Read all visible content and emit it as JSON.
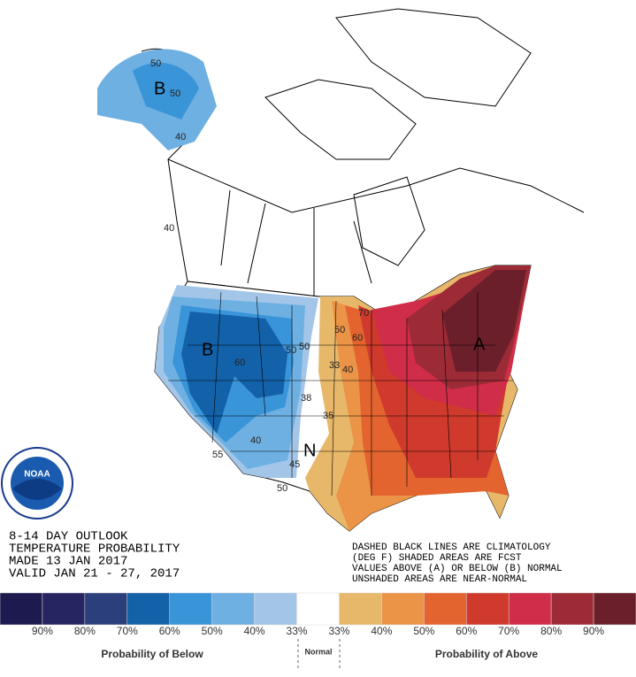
{
  "map": {
    "letters": [
      "B",
      "B",
      "A",
      "N"
    ],
    "contour_labels": [
      "50",
      "50",
      "40",
      "40",
      "60",
      "50",
      "60",
      "50",
      "70",
      "40",
      "33",
      "38",
      "35",
      "45",
      "55",
      "40",
      "50",
      "50"
    ]
  },
  "logo": "NOAA",
  "outlook_text": [
    "8-14 DAY OUTLOOK",
    "TEMPERATURE PROBABILITY",
    "MADE  13 JAN 2017",
    "VALID  JAN 21 - 27, 2017"
  ],
  "notes": [
    "DASHED BLACK LINES ARE CLIMATOLOGY",
    "(DEG F) SHADED AREAS ARE FCST",
    "VALUES ABOVE (A) OR BELOW (B) NORMAL",
    "UNSHADED AREAS ARE NEAR-NORMAL"
  ],
  "legend": {
    "colors": [
      "#1c1a4f",
      "#262461",
      "#2b3f7d",
      "#1361a9",
      "#3a94d8",
      "#6eb0e2",
      "#a3c6e8",
      "#ffffff",
      "#e8b86a",
      "#eb9346",
      "#e3642f",
      "#cf3a2c",
      "#cf2d48",
      "#9c2b36",
      "#6b1f2a"
    ],
    "labels": [
      "90%",
      "80%",
      "70%",
      "60%",
      "50%",
      "40%",
      "33%",
      "33%",
      "40%",
      "50%",
      "60%",
      "70%",
      "80%",
      "90%"
    ],
    "below": "Probability of Below",
    "normal": "Normal",
    "above": "Probability of Above"
  }
}
